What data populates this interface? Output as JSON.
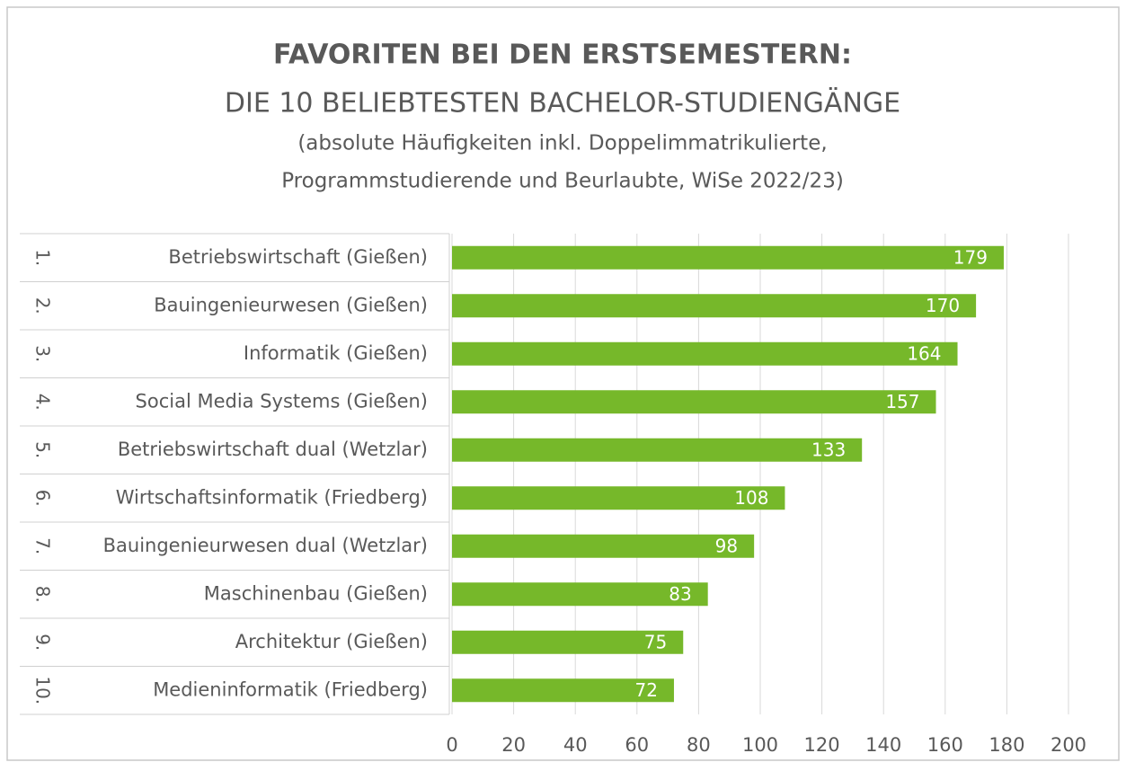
{
  "chart_data": {
    "type": "bar",
    "orientation": "horizontal",
    "title": "FAVORITEN BEI DEN ERSTSEMESTERN:",
    "title_line2": "DIE 10 BELIEBTESTEN BACHELOR-STUDIENGÄNGE",
    "subtitle": [
      "(absolute Häufigkeiten inkl. Doppelimmatrikulierte,",
      "Programmstudierende und Beurlaubte, WiSe 2022/23)"
    ],
    "ranks": [
      "1.",
      "2.",
      "3.",
      "4.",
      "5.",
      "6.",
      "7.",
      "8.",
      "9.",
      "10."
    ],
    "categories": [
      "Betriebswirtschaft (Gießen)",
      "Bauingenieurwesen (Gießen)",
      "Informatik (Gießen)",
      "Social Media Systems (Gießen)",
      "Betriebswirtschaft dual (Wetzlar)",
      "Wirtschaftsinformatik (Friedberg)",
      "Bauingenieurwesen dual (Wetzlar)",
      "Maschinenbau (Gießen)",
      "Architektur (Gießen)",
      "Medieninformatik (Friedberg)"
    ],
    "values": [
      179,
      170,
      164,
      157,
      133,
      108,
      98,
      83,
      75,
      72
    ],
    "color": "#76b82a",
    "xlim": [
      0,
      200
    ],
    "xticks": [
      0,
      20,
      40,
      60,
      80,
      100,
      120,
      140,
      160,
      180,
      200
    ],
    "grid": true
  }
}
